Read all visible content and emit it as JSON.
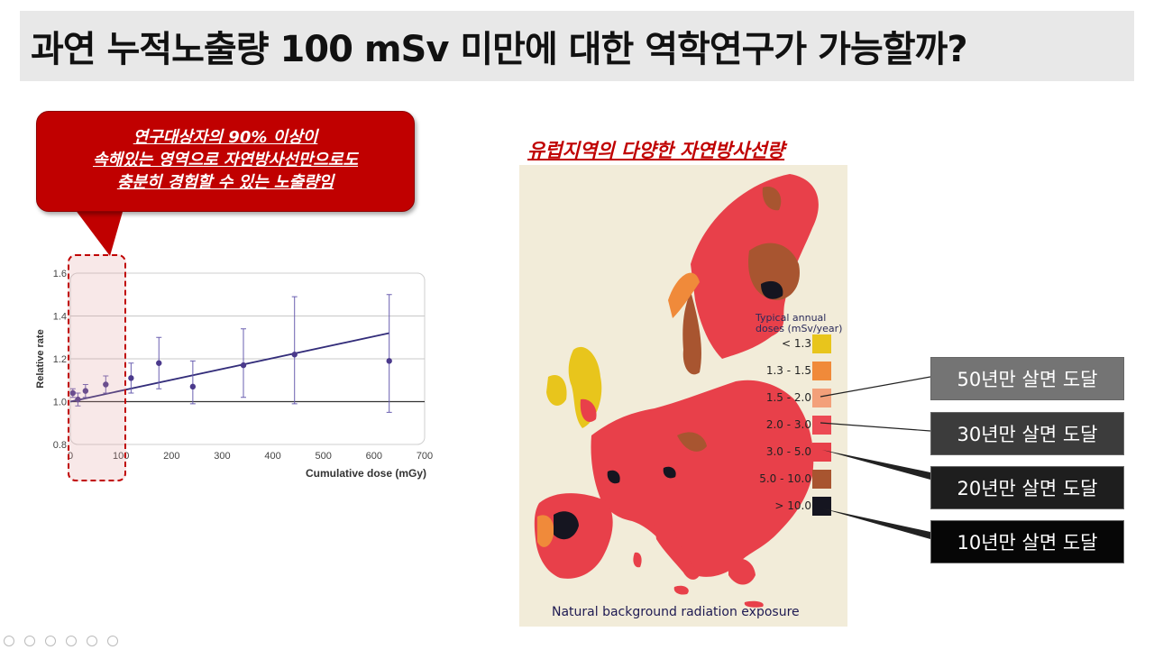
{
  "slide": {
    "title": "과연 누적노출량 100 mSv 미만에 대한 역학연구가 가능할까?"
  },
  "callout": {
    "lines": [
      "연구대상자의 90% 이상이",
      "속해있는 영역으로 자연방사선만으로도",
      "충분히 경험할 수 있는 노출량임"
    ]
  },
  "chart_data": {
    "type": "scatter",
    "ylabel": "Relative rate",
    "xlabel": "Cumulative dose (mGy)",
    "xlim": [
      0,
      700
    ],
    "ylim": [
      0.8,
      1.6
    ],
    "x_ticks": [
      "0",
      "100",
      "200",
      "300",
      "400",
      "500",
      "600",
      "700"
    ],
    "y_ticks": [
      "0.8",
      "1.0",
      "1.2",
      "1.4",
      "1.6"
    ],
    "grid": true,
    "points": [
      {
        "x": 5,
        "y": 1.04,
        "low": 1.02,
        "high": 1.06
      },
      {
        "x": 15,
        "y": 1.01,
        "low": 0.98,
        "high": 1.04
      },
      {
        "x": 30,
        "y": 1.05,
        "low": 1.02,
        "high": 1.08
      },
      {
        "x": 70,
        "y": 1.08,
        "low": 1.04,
        "high": 1.12
      },
      {
        "x": 120,
        "y": 1.11,
        "low": 1.04,
        "high": 1.18
      },
      {
        "x": 175,
        "y": 1.18,
        "low": 1.06,
        "high": 1.3
      },
      {
        "x": 242,
        "y": 1.07,
        "low": 0.99,
        "high": 1.19
      },
      {
        "x": 342,
        "y": 1.17,
        "low": 1.02,
        "high": 1.34
      },
      {
        "x": 443,
        "y": 1.22,
        "low": 0.99,
        "high": 1.49
      },
      {
        "x": 630,
        "y": 1.19,
        "low": 0.95,
        "high": 1.5
      }
    ],
    "fit_line": {
      "x": [
        0,
        630
      ],
      "y": [
        1.0,
        1.32
      ]
    },
    "reference_line": 1.0,
    "colors": {
      "points": "#4b3a8c",
      "fit": "#332d7a",
      "reference": "#333333"
    }
  },
  "map": {
    "title": "유럽지역의 다양한 자연방사선량",
    "legend_title": "Typical annual doses (mSv/year)",
    "legend": [
      {
        "label": "< 1.3",
        "color": "#e8c51c"
      },
      {
        "label": "1.3 - 1.5",
        "color": "#f08a3a"
      },
      {
        "label": "1.5 - 2.0",
        "color": "#f3a07a"
      },
      {
        "label": "2.0 - 3.0",
        "color": "#ec4a54"
      },
      {
        "label": "3.0 - 5.0",
        "color": "#e8404a"
      },
      {
        "label": "5.0 - 10.0",
        "color": "#a85530"
      },
      {
        "label": "> 10.0",
        "color": "#151520"
      }
    ],
    "caption": "Natural background radiation exposure"
  },
  "exposure_boxes": [
    {
      "label": "50년만 살면 도달",
      "color": "#747474"
    },
    {
      "label": "30년만 살면 도달",
      "color": "#3c3c3c"
    },
    {
      "label": "20년만 살면 도달",
      "color": "#1e1e1e"
    },
    {
      "label": "10년만 살면 도달",
      "color": "#060606"
    }
  ]
}
